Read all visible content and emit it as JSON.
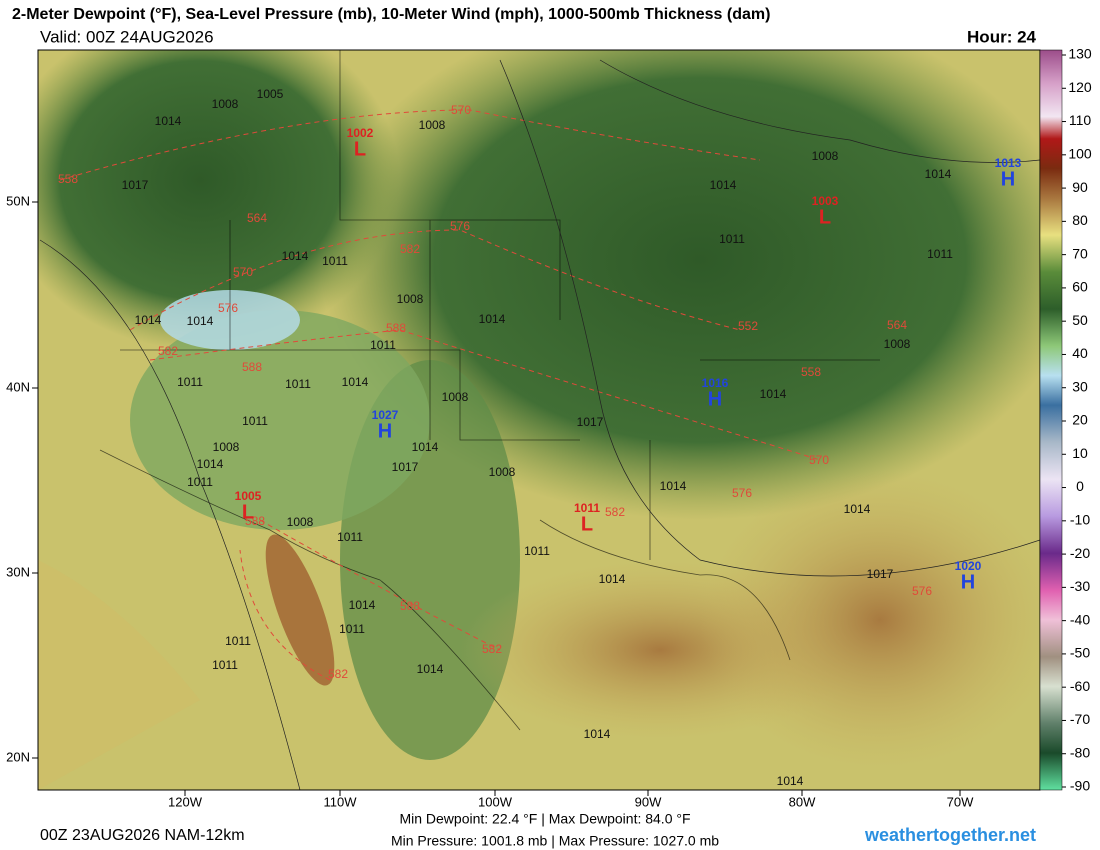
{
  "header": {
    "title": "2-Meter Dewpoint (°F), Sea-Level Pressure (mb), 10-Meter Wind (mph), 1000-500mb Thickness (dam)",
    "valid": "Valid: 00Z 24AUG2026",
    "hour": "Hour: 24"
  },
  "colorbar": {
    "ticks": [
      130,
      120,
      110,
      100,
      90,
      80,
      70,
      60,
      50,
      40,
      30,
      20,
      10,
      0,
      -10,
      -20,
      -30,
      -40,
      -50,
      -60,
      -70,
      -80,
      -90
    ]
  },
  "axes": {
    "latitudes": [
      "50N",
      "40N",
      "30N",
      "20N"
    ],
    "longitudes": [
      "120W",
      "110W",
      "100W",
      "90W",
      "80W",
      "70W"
    ]
  },
  "systems": [
    {
      "kind": "H",
      "pressure": 1013
    },
    {
      "kind": "L",
      "pressure": 1002
    },
    {
      "kind": "L",
      "pressure": 1003
    },
    {
      "kind": "H",
      "pressure": 1016
    },
    {
      "kind": "H",
      "pressure": 1027
    },
    {
      "kind": "L",
      "pressure": 1005
    },
    {
      "kind": "L",
      "pressure": 1011
    },
    {
      "kind": "H",
      "pressure": 1020
    }
  ],
  "isobar_labels": [
    1008,
    1005,
    1014,
    1017,
    1014,
    1011,
    1008,
    1014,
    1008,
    1014,
    1011,
    1008,
    1014,
    1011,
    1008,
    1014,
    1014,
    1011,
    1011,
    1014,
    1011,
    1008,
    1017,
    1014,
    1008,
    1014,
    1017,
    1011,
    1014,
    1011,
    1011,
    1014,
    1011,
    1014,
    1014,
    1014,
    1008,
    1011,
    1017,
    1014,
    1014,
    1008,
    1011,
    1014,
    1011
  ],
  "thickness_labels": [
    558,
    564,
    570,
    576,
    582,
    588,
    570,
    576,
    582,
    588,
    552,
    558,
    564,
    570,
    576,
    582,
    588,
    582,
    582,
    576,
    588
  ],
  "footer": {
    "run": "00Z 23AUG2026 NAM-12km",
    "dewpoint": "Min Dewpoint:  22.4 °F | Max Dewpoint:  84.0 °F",
    "pressure": "Min Pressure: 1001.8 mb | Max Pressure: 1027.0 mb",
    "site": "weathertogether.net"
  }
}
